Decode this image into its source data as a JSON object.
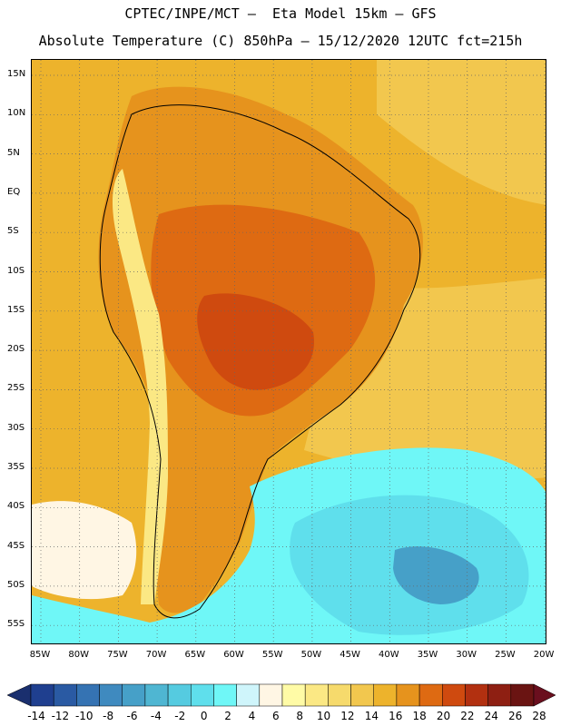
{
  "title_line1": "CPTEC/INPE/MCT –  Eta Model 15km – GFS",
  "title_line2": "Absolute Temperature (C) 850hPa – 15/12/2020 12UTC fct=215h",
  "lat_labels": [
    "15N",
    "10N",
    "5N",
    "EQ",
    "5S",
    "10S",
    "15S",
    "20S",
    "25S",
    "30S",
    "35S",
    "40S",
    "45S",
    "50S",
    "55S"
  ],
  "lon_labels": [
    "85W",
    "80W",
    "75W",
    "70W",
    "65W",
    "60W",
    "55W",
    "50W",
    "45W",
    "40W",
    "35W",
    "30W",
    "25W",
    "20W"
  ],
  "colorbar": {
    "labels": [
      "-14",
      "-12",
      "-10",
      "-8",
      "-6",
      "-4",
      "-2",
      "0",
      "2",
      "4",
      "6",
      "8",
      "10",
      "12",
      "14",
      "16",
      "18",
      "20",
      "22",
      "24",
      "26",
      "28"
    ],
    "colors": [
      "#1f3f8f",
      "#2a5aa3",
      "#3573b3",
      "#3f8abf",
      "#46a0c8",
      "#4fb6d2",
      "#55cbe0",
      "#5fdfec",
      "#6ff7f7",
      "#cff5fb",
      "#fff6e4",
      "#fffba6",
      "#fbe884",
      "#f6da6c",
      "#f2c74e",
      "#edb32c",
      "#e6931d",
      "#de6a12",
      "#cf4a0f",
      "#b23010",
      "#8e1f12",
      "#6a1412"
    ],
    "left_arrow_color": "#1a2f6e",
    "right_arrow_color": "#6a0f1e"
  },
  "field_colors": {
    "warm_ocean": "#edb32c",
    "subtropical": "#f2c74e",
    "land_hot": "#e6931d",
    "land_very_hot": "#de6a12",
    "core_hot": "#cf4a0f",
    "mild": "#fbe884",
    "cool": "#fff6e4",
    "cold_water": "#6ff7f7",
    "colder": "#5fdfec",
    "coldest": "#46a0c8"
  }
}
